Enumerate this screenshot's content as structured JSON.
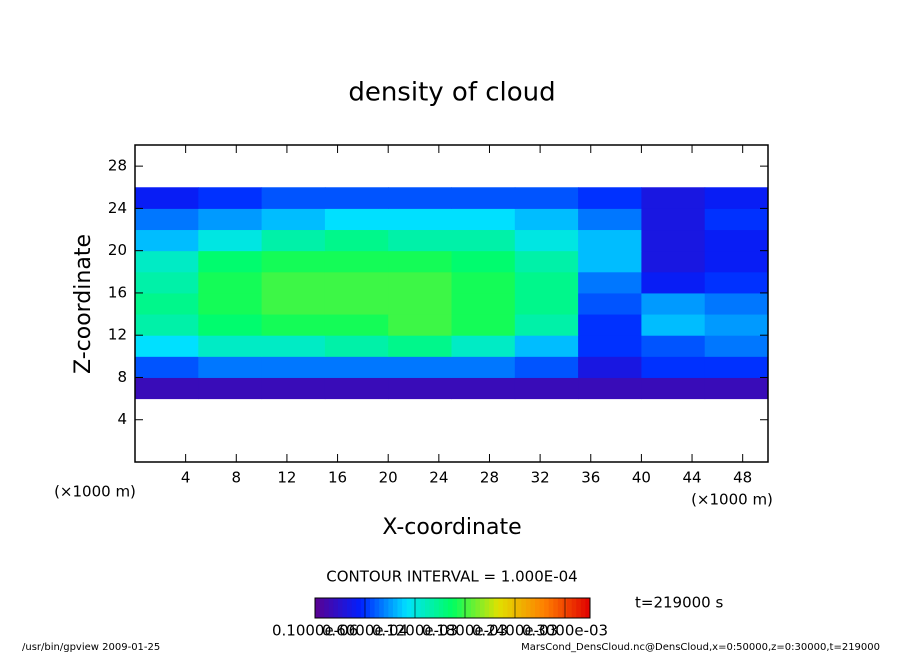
{
  "chart_data": {
    "type": "heatmap",
    "title": "density of cloud",
    "xlabel": "X-coordinate",
    "ylabel": "Z-coordinate",
    "x_unit": "(×1000 m)",
    "y_unit": "(×1000 m)",
    "xbins": [
      0,
      5,
      10,
      15,
      20,
      25,
      30,
      35,
      40,
      45,
      50
    ],
    "ybins": [
      0,
      2,
      4,
      6,
      8,
      10,
      12,
      14,
      16,
      18,
      20,
      22,
      24,
      26,
      28,
      30
    ],
    "values": [
      [
        null,
        null,
        null,
        null,
        null,
        null,
        null,
        null,
        null,
        null
      ],
      [
        null,
        null,
        null,
        null,
        null,
        null,
        null,
        null,
        null,
        null
      ],
      [
        null,
        null,
        null,
        null,
        null,
        null,
        null,
        null,
        null,
        null
      ],
      [
        2e-05,
        2e-05,
        2e-05,
        2e-05,
        2e-05,
        2e-05,
        2e-05,
        2e-05,
        2e-05,
        2e-05
      ],
      [
        7e-05,
        8e-05,
        8e-05,
        8e-05,
        8e-05,
        8e-05,
        7e-05,
        4e-05,
        6e-05,
        6e-05
      ],
      [
        0.00011,
        0.00013,
        0.00013,
        0.00014,
        0.00015,
        0.00013,
        0.0001,
        6e-05,
        7e-05,
        8e-05
      ],
      [
        0.00014,
        0.00016,
        0.00017,
        0.00017,
        0.00018,
        0.00017,
        0.00014,
        6e-05,
        0.0001,
        9e-05
      ],
      [
        0.00015,
        0.00017,
        0.00018,
        0.00018,
        0.00018,
        0.00017,
        0.00015,
        7e-05,
        9e-05,
        8e-05
      ],
      [
        0.00014,
        0.00017,
        0.00018,
        0.00018,
        0.00018,
        0.00017,
        0.00015,
        8e-05,
        5e-05,
        6e-05
      ],
      [
        0.00013,
        0.00016,
        0.00017,
        0.00017,
        0.00017,
        0.00016,
        0.00014,
        0.0001,
        4e-05,
        5e-05
      ],
      [
        0.0001,
        0.00012,
        0.00014,
        0.00015,
        0.00014,
        0.00014,
        0.00012,
        0.0001,
        4e-05,
        5e-05
      ],
      [
        8e-05,
        9e-05,
        0.0001,
        0.00011,
        0.00011,
        0.00011,
        0.0001,
        8e-05,
        4e-05,
        6e-05
      ],
      [
        5e-05,
        6e-05,
        7e-05,
        7e-05,
        7e-05,
        7e-05,
        7e-05,
        6e-05,
        4e-05,
        5e-05
      ],
      [
        null,
        null,
        null,
        null,
        null,
        null,
        null,
        null,
        null,
        null
      ],
      [
        null,
        null,
        null,
        null,
        null,
        null,
        null,
        null,
        null,
        null
      ]
    ],
    "xlim": [
      0,
      50
    ],
    "ylim": [
      0,
      30
    ],
    "xticks": [
      4,
      8,
      12,
      16,
      20,
      24,
      28,
      32,
      36,
      40,
      44,
      48
    ],
    "yticks": [
      4,
      8,
      12,
      16,
      20,
      24,
      28
    ],
    "clim": [
      0,
      0.00033
    ],
    "colormap": [
      "#5a0090",
      "#0020ff",
      "#00e0ff",
      "#00ff60",
      "#e0e000",
      "#ff8000",
      "#e00000"
    ],
    "cticks": [
      {
        "value": 1e-07,
        "label": "0.1000e-06"
      },
      {
        "value": 6e-05,
        "label": "0.6000e-04"
      },
      {
        "value": 0.00012,
        "label": "0.1200e-03"
      },
      {
        "value": 0.00018,
        "label": "0.1800e-03"
      },
      {
        "value": 0.00024,
        "label": "0.2400e-03"
      },
      {
        "value": 0.0003,
        "label": "0.3000e-03"
      }
    ],
    "contour_interval": "CONTOUR INTERVAL = 1.000E-04",
    "time_label": "t=219000 s",
    "footer_left": "/usr/bin/gpview  2009-01-25",
    "footer_right": "MarsCond_DensCloud.nc@DensCloud,x=0:50000,z=0:30000,t=219000"
  }
}
